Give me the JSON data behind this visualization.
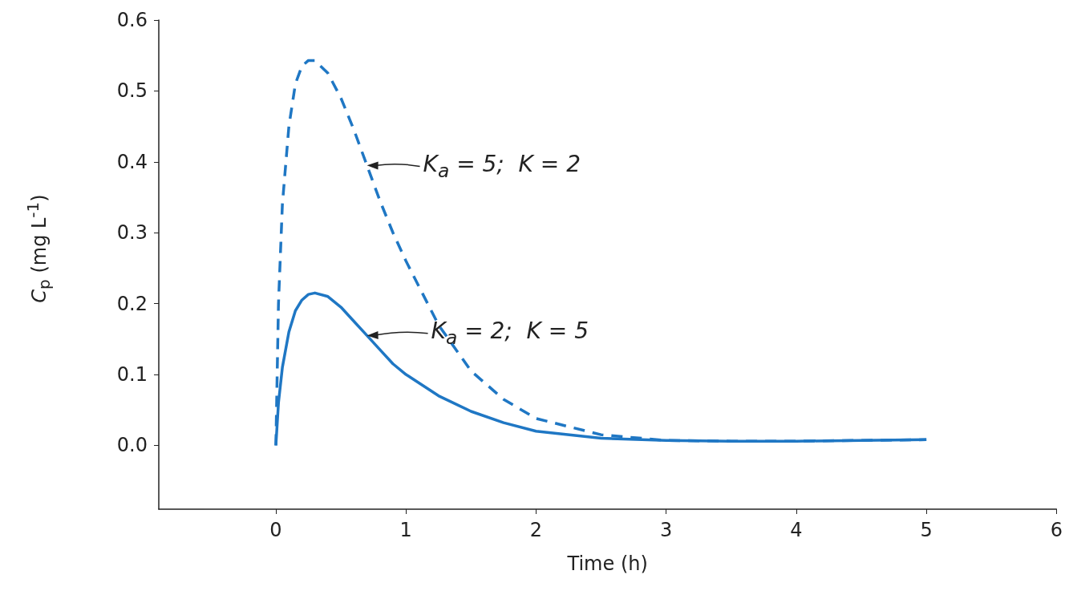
{
  "chart_data": {
    "type": "line",
    "xlabel": "Time (h)",
    "ylabel": "C$_{p}$ (mg L$^{-1}$)",
    "xlim": [
      -0.9,
      6
    ],
    "xticks": [
      0,
      1,
      2,
      3,
      4,
      5,
      6
    ],
    "ylim": [
      -0.09,
      0.6
    ],
    "yticks": [
      {
        "value": 0,
        "label": "0.0"
      },
      {
        "value": 0.1,
        "label": "0.1"
      },
      {
        "value": 0.2,
        "label": "0.2"
      },
      {
        "value": 0.3,
        "label": "0.3"
      },
      {
        "value": 0.4,
        "label": "0.4"
      },
      {
        "value": 0.5,
        "label": "0.5"
      },
      {
        "value": 0.6,
        "label": "0.6"
      }
    ],
    "grid": false,
    "marker": "none",
    "series": [
      {
        "color": "#1f77c4",
        "line_style": "dashed",
        "x": [
          0,
          0.02,
          0.05,
          0.1,
          0.15,
          0.2,
          0.25,
          0.3,
          0.4,
          0.5,
          0.6,
          0.7,
          0.8,
          0.9,
          1,
          1.25,
          1.5,
          1.75,
          2,
          2.5,
          3,
          3.5,
          4,
          4.5,
          5
        ],
        "values": [
          0,
          0.2,
          0.34,
          0.45,
          0.51,
          0.535,
          0.543,
          0.543,
          0.525,
          0.49,
          0.445,
          0.395,
          0.345,
          0.3,
          0.26,
          0.17,
          0.105,
          0.065,
          0.038,
          0.015,
          0.007,
          0.006,
          0.006,
          0.007,
          0.008
        ]
      },
      {
        "color": "#1f77c4",
        "line_style": "solid",
        "x": [
          0,
          0.02,
          0.05,
          0.1,
          0.15,
          0.2,
          0.25,
          0.3,
          0.4,
          0.5,
          0.6,
          0.7,
          0.8,
          0.9,
          1,
          1.25,
          1.5,
          1.75,
          2,
          2.5,
          3,
          3.5,
          4,
          4.5,
          5
        ],
        "values": [
          0,
          0.06,
          0.11,
          0.16,
          0.19,
          0.205,
          0.213,
          0.215,
          0.21,
          0.195,
          0.175,
          0.155,
          0.135,
          0.115,
          0.1,
          0.07,
          0.048,
          0.032,
          0.02,
          0.01,
          0.007,
          0.006,
          0.006,
          0.007,
          0.008
        ]
      }
    ],
    "annotations": [
      {
        "text": "K$_{a}$ = 5;  K = 2",
        "x": 0.7,
        "y": 0.395
      },
      {
        "text": "K$_{a}$ = 2;  K = 5",
        "x": 0.7,
        "y": 0.155
      }
    ]
  }
}
